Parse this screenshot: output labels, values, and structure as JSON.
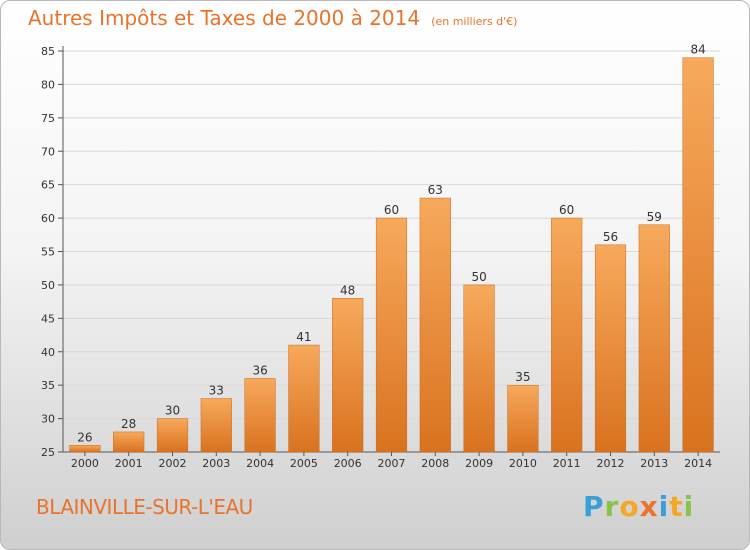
{
  "title": "Autres Impôts et Taxes de 2000 à 2014",
  "unit_note": "(en milliers d'€)",
  "place_name": "BLAINVILLE-SUR-L'EAU",
  "logo": {
    "text": "Proxiti",
    "letters": [
      "P",
      "r",
      "o",
      "x",
      "i",
      "t",
      "i"
    ]
  },
  "colors": {
    "bar_light": "#f7a95c",
    "bar_dark": "#d9721f",
    "title": "#e8742c",
    "grid": "#d8d8d8"
  },
  "chart_data": {
    "type": "bar",
    "title": "Autres Impôts et Taxes de 2000 à 2014",
    "subtitle": "(en milliers d'€)",
    "xlabel": "",
    "ylabel": "",
    "categories": [
      "2000",
      "2001",
      "2002",
      "2003",
      "2004",
      "2005",
      "2006",
      "2007",
      "2008",
      "2009",
      "2010",
      "2011",
      "2012",
      "2013",
      "2014"
    ],
    "values": [
      26,
      28,
      30,
      33,
      36,
      41,
      48,
      60,
      63,
      50,
      35,
      60,
      56,
      59,
      84
    ],
    "ylim": [
      25,
      85
    ],
    "yticks": [
      25,
      30,
      35,
      40,
      45,
      50,
      55,
      60,
      65,
      70,
      75,
      80,
      85
    ],
    "grid": true,
    "legend": "none"
  }
}
